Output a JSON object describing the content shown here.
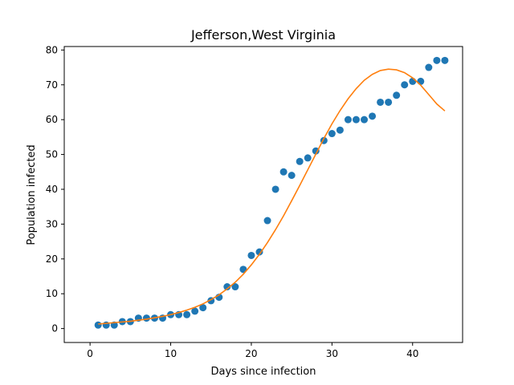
{
  "chart_data": {
    "type": "scatter",
    "title": "Jefferson,West Virginia",
    "xlabel": "Days since infection",
    "ylabel": "Population infected",
    "xlim": [
      -3.2,
      46.2
    ],
    "ylim": [
      -4.0,
      81.0
    ],
    "xticks": [
      0,
      10,
      20,
      30,
      40
    ],
    "yticks": [
      0,
      10,
      20,
      30,
      40,
      50,
      60,
      70,
      80
    ],
    "grid": false,
    "colors": {
      "points": "#1f77b4",
      "fit": "#ff7f0e"
    },
    "series": [
      {
        "type": "scatter",
        "x": [
          1,
          2,
          3,
          4,
          5,
          6,
          7,
          8,
          9,
          10,
          11,
          12,
          13,
          14,
          15,
          16,
          17,
          18,
          19,
          20,
          21,
          22,
          23,
          24,
          25,
          26,
          27,
          28,
          29,
          30,
          31,
          32,
          33,
          34,
          35,
          36,
          37,
          38,
          39,
          40,
          41,
          42,
          43,
          44
        ],
        "y": [
          1,
          1,
          1,
          2,
          2,
          3,
          3,
          3,
          3,
          4,
          4,
          4,
          5,
          6,
          8,
          9,
          12,
          12,
          17,
          21,
          22,
          31,
          40,
          45,
          44,
          48,
          49,
          51,
          54,
          56,
          57,
          60,
          60,
          60,
          61,
          65,
          65,
          67,
          70,
          71,
          71,
          75,
          77,
          77
        ]
      },
      {
        "type": "line",
        "x": [
          1,
          2,
          3,
          4,
          5,
          6,
          7,
          8,
          9,
          10,
          11,
          12,
          13,
          14,
          15,
          16,
          17,
          18,
          19,
          20,
          21,
          22,
          23,
          24,
          25,
          26,
          27,
          28,
          29,
          30,
          31,
          32,
          33,
          34,
          35,
          36,
          37,
          38,
          39,
          40,
          41,
          42,
          43,
          44
        ],
        "y": [
          1.3,
          1.5,
          1.7,
          1.9,
          2.1,
          2.4,
          2.7,
          3.1,
          3.5,
          4.0,
          4.6,
          5.3,
          6.1,
          7.1,
          8.3,
          9.7,
          11.4,
          13.3,
          15.6,
          18.3,
          21.3,
          24.7,
          28.4,
          32.4,
          36.7,
          41.1,
          45.6,
          50.1,
          54.6,
          58.8,
          62.6,
          66.0,
          68.9,
          71.3,
          73.0,
          74.1,
          74.5,
          74.3,
          73.5,
          72.0,
          69.9,
          67.2,
          64.5,
          62.5
        ]
      }
    ]
  }
}
